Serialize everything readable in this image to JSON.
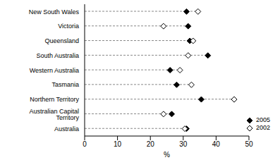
{
  "chart_data": {
    "type": "dot",
    "orientation": "horizontal",
    "x_label": "%",
    "categories": [
      "New South Wales",
      "Victoria",
      "Queensland",
      "South Australia",
      "Western Australia",
      "Tasmania",
      "Northern Territory",
      "Australian Capital Territory",
      "Australia"
    ],
    "series": [
      {
        "name": "2005",
        "color": "#000000",
        "marker": "filled_diamond",
        "values": [
          31,
          31.5,
          32,
          37.5,
          26,
          28,
          35.5,
          26.5,
          31
        ]
      },
      {
        "name": "2002",
        "color": "#000000",
        "marker": "open_diamond",
        "values": [
          34.5,
          24,
          33,
          31.5,
          29,
          32.5,
          45.5,
          24,
          30.5
        ]
      }
    ],
    "xlim": [
      0,
      50
    ],
    "xticks": [
      0,
      10,
      20,
      30,
      40,
      50
    ],
    "grid": false,
    "legend": "lower right"
  }
}
